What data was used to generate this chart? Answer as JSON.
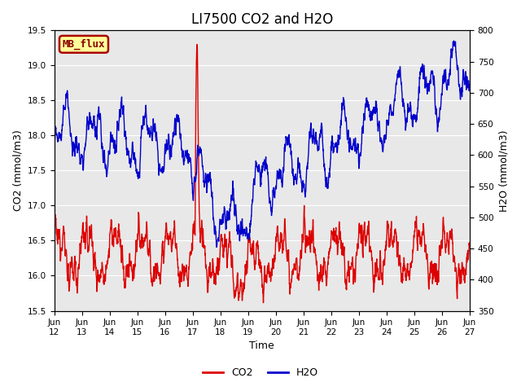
{
  "title": "LI7500 CO2 and H2O",
  "xlabel": "Time",
  "ylabel_left": "CO2 (mmol/m3)",
  "ylabel_right": "H2O (mmol/m3)",
  "ylim_left": [
    15.5,
    19.5
  ],
  "ylim_right": [
    350,
    800
  ],
  "yticks_left": [
    15.5,
    16.0,
    16.5,
    17.0,
    17.5,
    18.0,
    18.5,
    19.0,
    19.5
  ],
  "yticks_right": [
    350,
    400,
    450,
    500,
    550,
    600,
    650,
    700,
    750,
    800
  ],
  "bg_color": "#e8e8e8",
  "fig_color": "#ffffff",
  "label_box_text": "MB_flux",
  "label_box_bg": "#ffff99",
  "label_box_edge": "#aa0000",
  "co2_color": "#dd0000",
  "h2o_color": "#0000cc",
  "legend_co2": "CO2",
  "legend_h2o": "H2O",
  "n_days": 15,
  "xtick_labels": [
    "Jun\n12",
    "Jun\n13",
    "Jun\n14",
    "Jun\n15",
    "Jun\n16",
    "Jun\n17",
    "Jun\n18",
    "Jun\n19",
    "Jun\n20",
    "Jun\n21",
    "Jun\n22",
    "Jun\n23",
    "Jun\n24",
    "Jun\n25",
    "Jun\n26",
    "Jun\n27"
  ],
  "title_fontsize": 12,
  "axis_label_fontsize": 9,
  "tick_fontsize": 7.5,
  "legend_fontsize": 9,
  "linewidth": 1.0
}
